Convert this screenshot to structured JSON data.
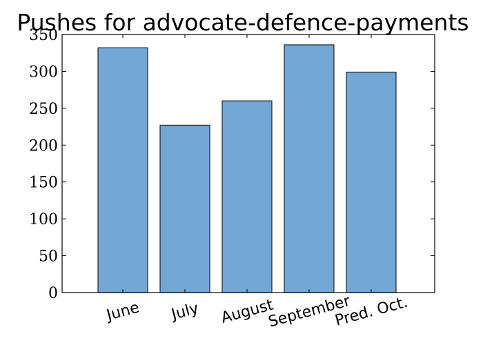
{
  "chart_data": {
    "type": "bar",
    "title": "Pushes for advocate-defence-payments",
    "xlabel": "",
    "ylabel": "",
    "categories": [
      "June",
      "July",
      "August",
      "September",
      "Pred. Oct."
    ],
    "values": [
      332,
      227,
      260,
      336,
      299
    ],
    "ylim": [
      0,
      350
    ],
    "yticks": [
      0,
      50,
      100,
      150,
      200,
      250,
      300,
      350
    ],
    "grid": false,
    "bar_color": "#72a7d6",
    "edge_color": "#222222"
  }
}
